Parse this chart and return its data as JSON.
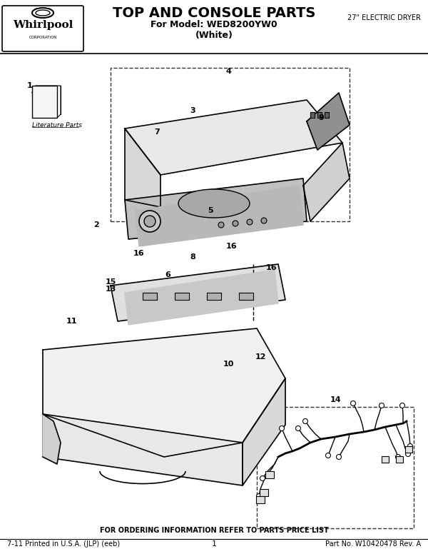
{
  "title": "TOP AND CONSOLE PARTS",
  "subtitle1": "For Model: WED8200YW0",
  "subtitle2": "(White)",
  "right_header": "27\" ELECTRIC DRYER",
  "footer_center": "FOR ORDERING INFORMATION REFER TO PARTS PRICE LIST",
  "footer_left": "7-11 Printed in U.S.A. (JLP) (eeb)",
  "footer_middle": "1",
  "footer_right": "Part No. W10420478 Rev. A",
  "bg_color": "#ffffff",
  "text_color": "#000000",
  "diagram_line_color": "#222222",
  "dashed_box_color": "#333333"
}
